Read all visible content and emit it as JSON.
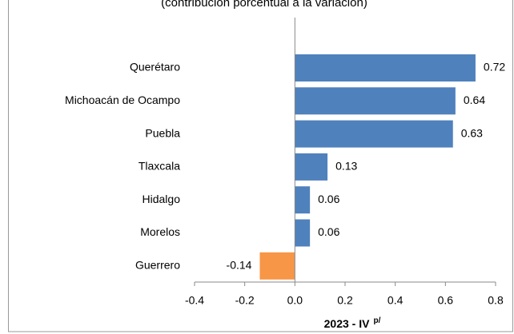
{
  "chart_data": {
    "type": "barh",
    "subtitle": "(contribución porcentual a la variación)",
    "categories": [
      "Querétaro",
      "Michoacán de Ocampo",
      "Puebla",
      "Tlaxcala",
      "Hidalgo",
      "Morelos",
      "Guerrero"
    ],
    "values": [
      0.72,
      0.64,
      0.63,
      0.13,
      0.06,
      0.06,
      -0.14
    ],
    "colors": [
      "#4f81bd",
      "#4f81bd",
      "#4f81bd",
      "#4f81bd",
      "#4f81bd",
      "#4f81bd",
      "#f79646"
    ],
    "xlabel": "2023 - IV",
    "xlabel_note": "p/",
    "xlim": [
      -0.4,
      0.8
    ],
    "xticks": [
      -0.4,
      -0.2,
      {
        "value": 0,
        "label": "0.0"
      },
      0.2,
      0.4,
      0.6,
      0.8
    ],
    "grid": false
  }
}
